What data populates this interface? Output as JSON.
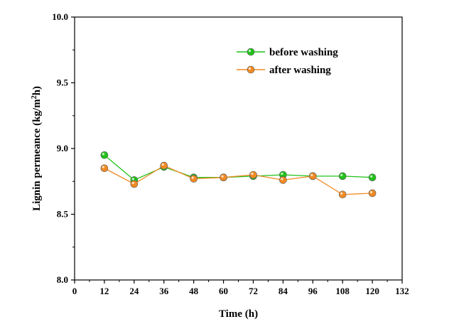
{
  "chart_data": {
    "type": "line",
    "xlabel": "Time (h)",
    "ylabel": "Lignin permeance (kg/m²h)",
    "ylabel_parts": {
      "main": "Lignin permeance (kg/m",
      "sup": "2",
      "tail": "h)"
    },
    "xlim": [
      0,
      132
    ],
    "ylim": [
      8.0,
      10.0
    ],
    "x_ticks": [
      "0",
      "12",
      "24",
      "36",
      "48",
      "60",
      "72",
      "84",
      "96",
      "108",
      "120",
      "132"
    ],
    "y_ticks": [
      "8.0",
      "8.5",
      "9.0",
      "9.5",
      "10.0"
    ],
    "legend_position": "top-right",
    "series": [
      {
        "name": "before washing",
        "color": "#21c21a",
        "x": [
          12,
          24,
          36,
          48,
          60,
          72,
          84,
          96,
          108,
          120
        ],
        "y": [
          8.95,
          8.76,
          8.86,
          8.78,
          8.78,
          8.79,
          8.8,
          8.79,
          8.79,
          8.78
        ]
      },
      {
        "name": "after washing",
        "color": "#f08a24",
        "x": [
          12,
          24,
          36,
          48,
          60,
          72,
          84,
          96,
          108,
          120
        ],
        "y": [
          8.85,
          8.73,
          8.87,
          8.77,
          8.78,
          8.8,
          8.76,
          8.79,
          8.65,
          8.66
        ]
      }
    ]
  }
}
